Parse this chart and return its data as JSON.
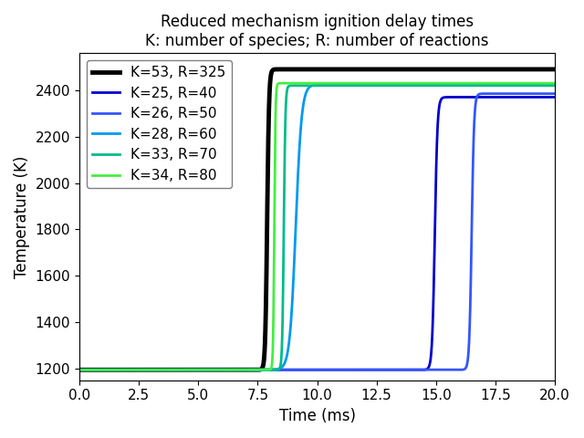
{
  "title_line1": "Reduced mechanism ignition delay times",
  "title_line2": "K: number of species; R: number of reactions",
  "xlabel": "Time (ms)",
  "ylabel": "Temperature (K)",
  "xlim": [
    0.0,
    20.0
  ],
  "ylim": [
    1150,
    2560
  ],
  "series": [
    {
      "label": "K=53, R=325",
      "color": "#000000",
      "linewidth": 3.5,
      "T_init": 1195,
      "T_final": 2490,
      "t_ignite": 7.9,
      "steepness": 25.0,
      "pre_rise": false
    },
    {
      "label": "K=25, R=40",
      "color": "#0000cc",
      "linewidth": 2.0,
      "T_init": 1195,
      "T_final": 2370,
      "t_ignite": 14.95,
      "steepness": 18.0,
      "pre_rise": false
    },
    {
      "label": "K=26, R=50",
      "color": "#3355ff",
      "linewidth": 2.0,
      "T_init": 1195,
      "T_final": 2385,
      "t_ignite": 16.5,
      "steepness": 20.0,
      "pre_rise": false
    },
    {
      "label": "K=28, R=60",
      "color": "#0099ee",
      "linewidth": 2.0,
      "T_init": 1195,
      "T_final": 2425,
      "t_ignite": 9.1,
      "steepness": 8.0,
      "pre_rise": true,
      "pre_T": 1210,
      "pre_t": 7.5
    },
    {
      "label": "K=33, R=70",
      "color": "#00bb88",
      "linewidth": 2.0,
      "T_init": 1195,
      "T_final": 2420,
      "t_ignite": 8.6,
      "steepness": 30.0,
      "pre_rise": false
    },
    {
      "label": "K=34, R=80",
      "color": "#44ee44",
      "linewidth": 2.0,
      "T_init": 1195,
      "T_final": 2430,
      "t_ignite": 8.2,
      "steepness": 40.0,
      "pre_rise": false
    }
  ],
  "background_color": "#ffffff",
  "legend_loc": "upper left",
  "title_fontsize": 12,
  "label_fontsize": 12,
  "tick_fontsize": 11,
  "legend_fontsize": 11
}
